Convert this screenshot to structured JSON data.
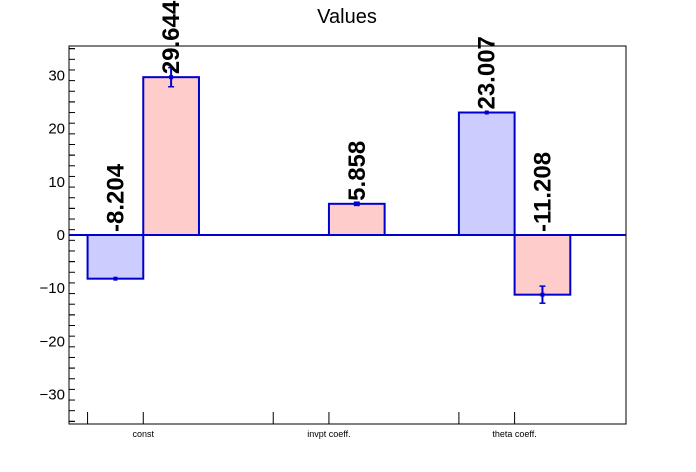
{
  "chart_data": {
    "type": "bar",
    "title": "Values",
    "xlabel": "",
    "ylabel": "",
    "ylim": [
      -35.5,
      35.5
    ],
    "yticks": [
      -30,
      -20,
      -10,
      0,
      10,
      20,
      30
    ],
    "ytick_labels": [
      "−30",
      "−20",
      "−10",
      "0",
      "10",
      "20",
      "30"
    ],
    "categories": [
      "const",
      "invpt coeff.",
      "theta coeff."
    ],
    "series": [
      {
        "color": "#ccccff",
        "values": [
          -8.204,
          null,
          23.007
        ],
        "labels": [
          "-8.204",
          null,
          "23.007"
        ],
        "errors": [
          0,
          null,
          0
        ]
      },
      {
        "color": "#ffcccc",
        "values": [
          29.644,
          5.858,
          -11.208
        ],
        "labels": [
          "29.644",
          "5.858",
          "-11.208"
        ],
        "errors": [
          1.8,
          0.3,
          1.6
        ]
      }
    ],
    "bar_edge_color": "#0000cc",
    "grid": false,
    "legend": "none"
  }
}
